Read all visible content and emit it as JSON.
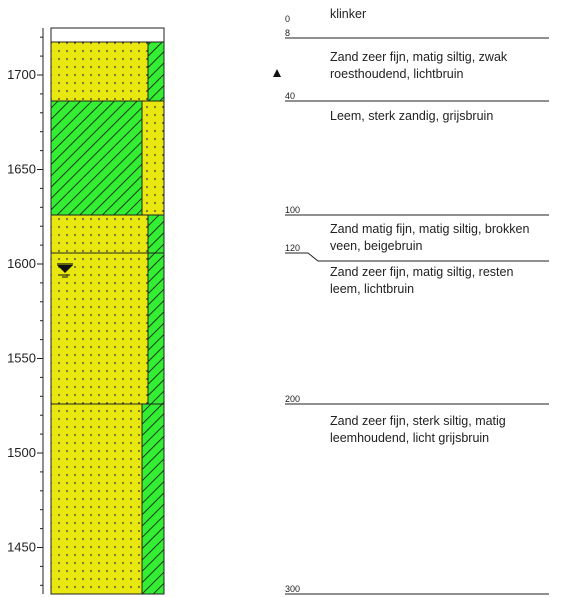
{
  "elevation_axis": {
    "ticks": [
      {
        "value": 1700,
        "label": "1700"
      },
      {
        "value": 1650,
        "label": "1650"
      },
      {
        "value": 1600,
        "label": "1600"
      },
      {
        "value": 1550,
        "label": "1550"
      },
      {
        "value": 1500,
        "label": "1500"
      },
      {
        "value": 1450,
        "label": "1450"
      }
    ]
  },
  "colors": {
    "sand": "#e8e810",
    "clay_green": "#33ee33",
    "line": "#222222",
    "dot": "#333333"
  },
  "depth_markers": [
    {
      "depth": 0,
      "label": "0"
    },
    {
      "depth": 8,
      "label": "8"
    },
    {
      "depth": 40,
      "label": "40"
    },
    {
      "depth": 100,
      "label": "100"
    },
    {
      "depth": 120,
      "label": "120"
    },
    {
      "depth": 200,
      "label": "200"
    },
    {
      "depth": 300,
      "label": "300"
    }
  ],
  "layers": [
    {
      "top": 0,
      "bottom": 8,
      "lines": [
        "klinker"
      ]
    },
    {
      "top": 8,
      "bottom": 40,
      "lines": [
        "Zand zeer fijn, matig siltig, zwak",
        "roesthoudend,  lichtbruin"
      ]
    },
    {
      "top": 40,
      "bottom": 100,
      "lines": [
        "Leem, sterk zandig, grijsbruin"
      ]
    },
    {
      "top": 100,
      "bottom": 120,
      "lines": [
        "Zand matig fijn, matig siltig, brokken",
        "veen, beigebruin"
      ]
    },
    {
      "top": 120,
      "bottom": 200,
      "lines": [
        "Zand zeer fijn, matig siltig, resten",
        "leem,  lichtbruin"
      ]
    },
    {
      "top": 200,
      "bottom": 300,
      "lines": [
        "Zand zeer fijn, sterk siltig, matig",
        "leemhoudend,  licht  grijsbruin"
      ]
    }
  ],
  "symbols": {
    "marker_icon": "triangle-up-icon",
    "groundwater_icon": "groundwater-level-icon"
  }
}
